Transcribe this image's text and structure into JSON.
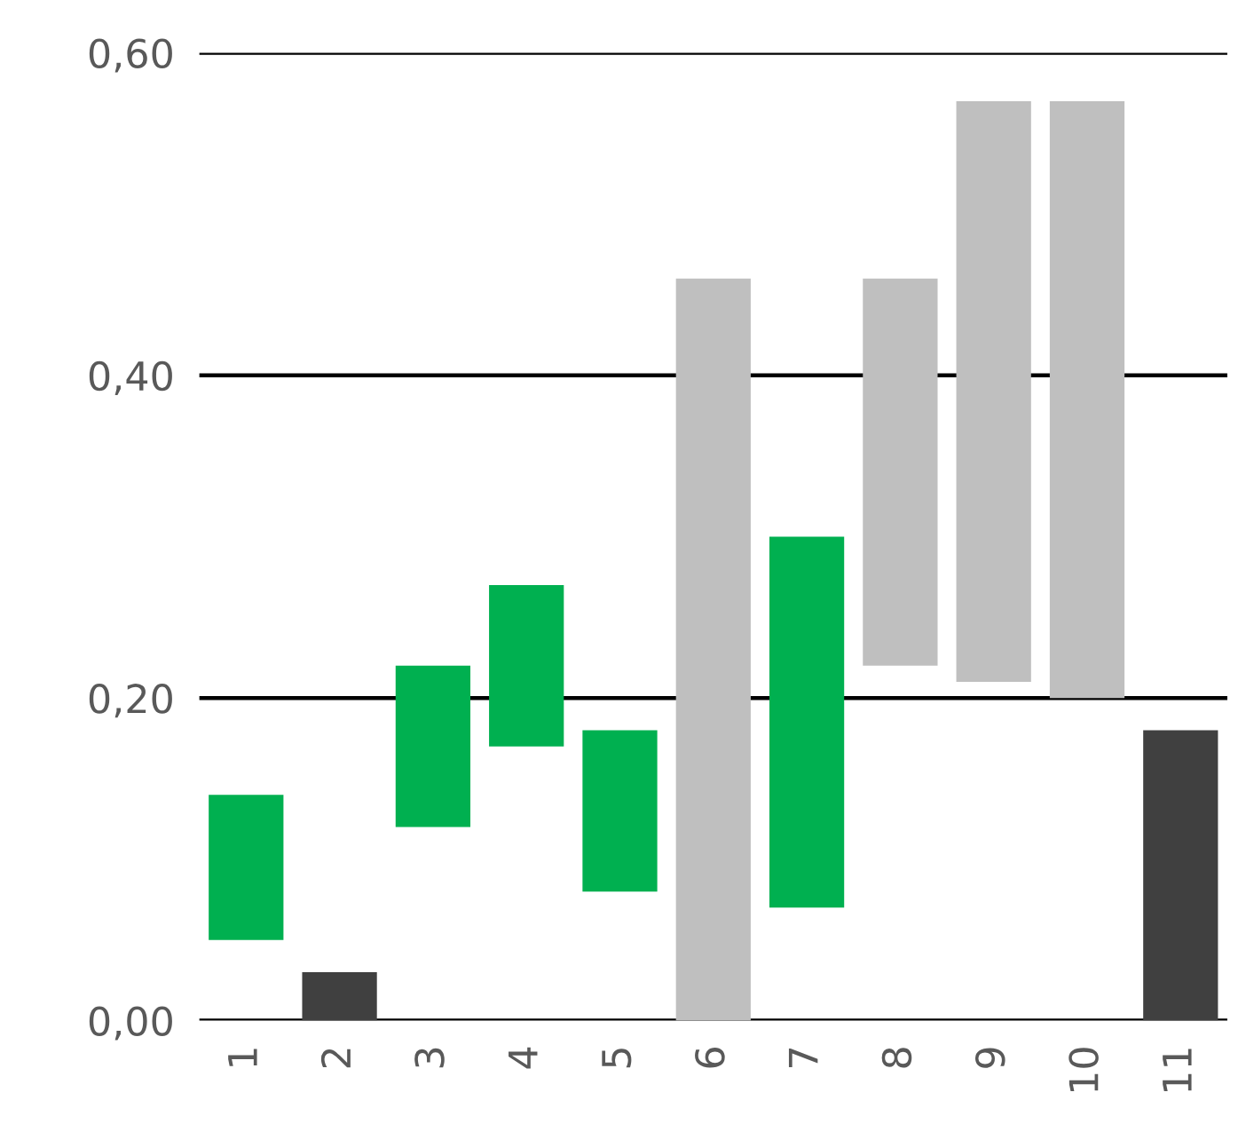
{
  "chart_data": {
    "type": "bar",
    "categories": [
      "1",
      "2",
      "3",
      "4",
      "5",
      "6",
      "7",
      "8",
      "9",
      "10",
      "11"
    ],
    "base": [
      0.05,
      0.0,
      0.12,
      0.17,
      0.08,
      0.0,
      0.07,
      0.22,
      0.21,
      0.2,
      0.0
    ],
    "values": [
      0.09,
      0.03,
      0.1,
      0.1,
      0.1,
      0.46,
      0.23,
      0.24,
      0.36,
      0.37,
      0.18
    ],
    "colors": [
      "#00b050",
      "#404040",
      "#00b050",
      "#00b050",
      "#00b050",
      "#bfbfbf",
      "#00b050",
      "#bfbfbf",
      "#bfbfbf",
      "#bfbfbf",
      "#404040"
    ],
    "ylim": [
      0,
      0.6
    ],
    "yticks": [
      {
        "value": 0,
        "label": "0,00"
      },
      {
        "value": 0.2,
        "label": "0,20"
      },
      {
        "value": 0.4,
        "label": "0,40"
      },
      {
        "value": 0.6,
        "label": "0,60"
      }
    ],
    "grid": "y"
  }
}
